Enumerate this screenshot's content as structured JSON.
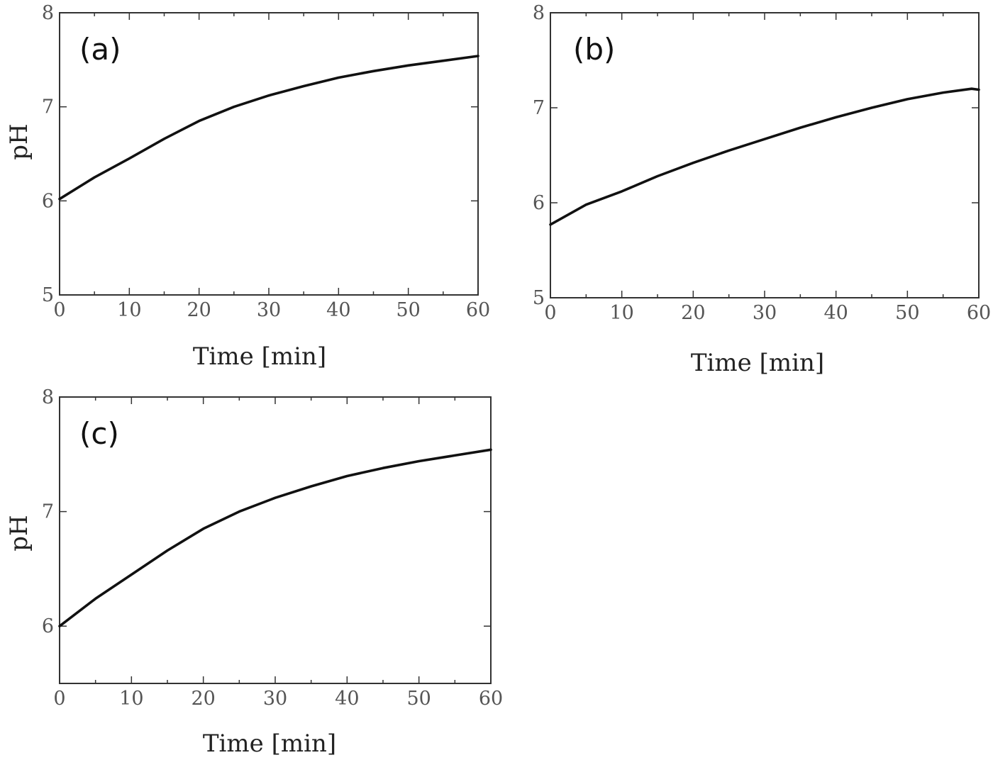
{
  "chart_data": [
    {
      "type": "line",
      "panel": "(a)",
      "title": "",
      "xlabel": "Time [min]",
      "ylabel": "pH",
      "xlim": [
        0,
        60
      ],
      "ylim": [
        5,
        8
      ],
      "xticks": [
        0,
        10,
        20,
        30,
        40,
        50,
        60
      ],
      "yticks": [
        5,
        6,
        7,
        8
      ],
      "x_tick_labels": [
        "0",
        "10",
        "20",
        "30",
        "40",
        "50",
        "60"
      ],
      "y_tick_labels": [
        "5",
        "6",
        "7",
        "8"
      ],
      "grid": false,
      "series": [
        {
          "name": "pH",
          "x": [
            0,
            5,
            10,
            15,
            20,
            25,
            30,
            35,
            40,
            45,
            50,
            55,
            60
          ],
          "y": [
            6.02,
            6.25,
            6.45,
            6.66,
            6.85,
            7.0,
            7.12,
            7.22,
            7.31,
            7.38,
            7.44,
            7.49,
            7.54
          ]
        }
      ]
    },
    {
      "type": "line",
      "panel": "(b)",
      "title": "",
      "xlabel": "Time [min]",
      "ylabel": "",
      "xlim": [
        0,
        60
      ],
      "ylim": [
        5,
        8
      ],
      "xticks": [
        0,
        10,
        20,
        30,
        40,
        50,
        60
      ],
      "yticks": [
        5,
        6,
        7,
        8
      ],
      "x_tick_labels": [
        "0",
        "10",
        "20",
        "30",
        "40",
        "50",
        "60"
      ],
      "y_tick_labels": [
        "5",
        "6",
        "7",
        "8"
      ],
      "grid": false,
      "series": [
        {
          "name": "pH",
          "x": [
            0,
            5,
            10,
            15,
            20,
            25,
            30,
            35,
            40,
            45,
            50,
            55,
            59,
            60
          ],
          "y": [
            5.77,
            5.98,
            6.12,
            6.28,
            6.42,
            6.55,
            6.67,
            6.79,
            6.9,
            7.0,
            7.09,
            7.16,
            7.2,
            7.19
          ]
        }
      ]
    },
    {
      "type": "line",
      "panel": "(c)",
      "title": "",
      "xlabel": "Time [min]",
      "ylabel": "pH",
      "xlim": [
        0,
        60
      ],
      "ylim": [
        5.5,
        8
      ],
      "xticks": [
        0,
        10,
        20,
        30,
        40,
        50,
        60
      ],
      "yticks": [
        6,
        7,
        8
      ],
      "x_tick_labels": [
        "0",
        "10",
        "20",
        "30",
        "40",
        "50",
        "60"
      ],
      "y_tick_labels": [
        "6",
        "7",
        "8"
      ],
      "grid": false,
      "series": [
        {
          "name": "pH",
          "x": [
            0,
            5,
            10,
            15,
            20,
            25,
            30,
            35,
            40,
            45,
            50,
            55,
            60
          ],
          "y": [
            6.0,
            6.24,
            6.45,
            6.66,
            6.85,
            7.0,
            7.12,
            7.22,
            7.31,
            7.38,
            7.44,
            7.49,
            7.54
          ]
        }
      ]
    }
  ]
}
